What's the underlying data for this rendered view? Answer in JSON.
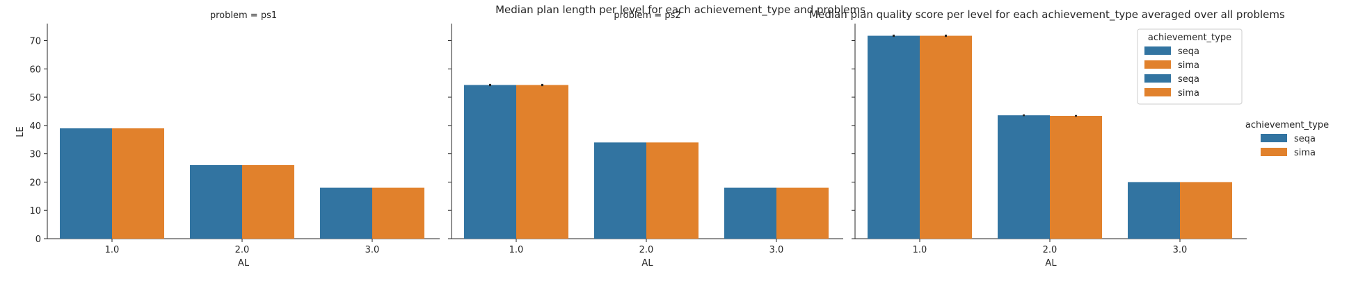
{
  "figure": {
    "suptitle": "Median plan length per level for each achievement_type and problems",
    "overlay_title": "Median plan quality score per level for each achievement_type averaged over all problems",
    "ylabel": "LE",
    "xlabel": "AL"
  },
  "legend": {
    "title": "achievement_type",
    "entries": [
      "seqa",
      "sima"
    ]
  },
  "inner_legend": {
    "title": "achievement_type",
    "entries": [
      "seqa",
      "sima",
      "seqa",
      "sima"
    ]
  },
  "colors": {
    "seqa": "#3274a1",
    "sima": "#e1812c",
    "errbar": "#262626"
  },
  "chart_data": [
    {
      "type": "bar",
      "title": "problem = ps1",
      "xlabel": "AL",
      "ylabel": "LE",
      "categories": [
        "1.0",
        "2.0",
        "3.0"
      ],
      "ylim": [
        0,
        76
      ],
      "yticks": [
        0,
        10,
        20,
        30,
        40,
        50,
        60,
        70
      ],
      "series": [
        {
          "name": "seqa",
          "values": [
            39,
            26,
            18
          ]
        },
        {
          "name": "sima",
          "values": [
            39,
            26,
            18
          ]
        }
      ],
      "error": [
        [
          0,
          0,
          0
        ],
        [
          0,
          0,
          0
        ]
      ]
    },
    {
      "type": "bar",
      "title": "problem = ps2",
      "xlabel": "AL",
      "categories": [
        "1.0",
        "2.0",
        "3.0"
      ],
      "ylim": [
        0,
        76
      ],
      "yticks": [
        0,
        10,
        20,
        30,
        40,
        50,
        60,
        70
      ],
      "series": [
        {
          "name": "seqa",
          "values": [
            54.3,
            34,
            18
          ]
        },
        {
          "name": "sima",
          "values": [
            54.3,
            34,
            18
          ]
        }
      ],
      "error": [
        [
          0.4,
          0,
          0
        ],
        [
          0.4,
          0,
          0
        ]
      ]
    },
    {
      "type": "bar",
      "title": "",
      "xlabel": "AL",
      "categories": [
        "1.0",
        "2.0",
        "3.0"
      ],
      "ylim": [
        0,
        76
      ],
      "yticks": [
        0,
        10,
        20,
        30,
        40,
        50,
        60,
        70
      ],
      "series": [
        {
          "name": "seqa",
          "values": [
            71.7,
            43.6,
            20
          ]
        },
        {
          "name": "sima",
          "values": [
            71.7,
            43.4,
            20
          ]
        }
      ],
      "error": [
        [
          0.4,
          0.3,
          0
        ],
        [
          0.4,
          0.3,
          0
        ]
      ]
    }
  ]
}
